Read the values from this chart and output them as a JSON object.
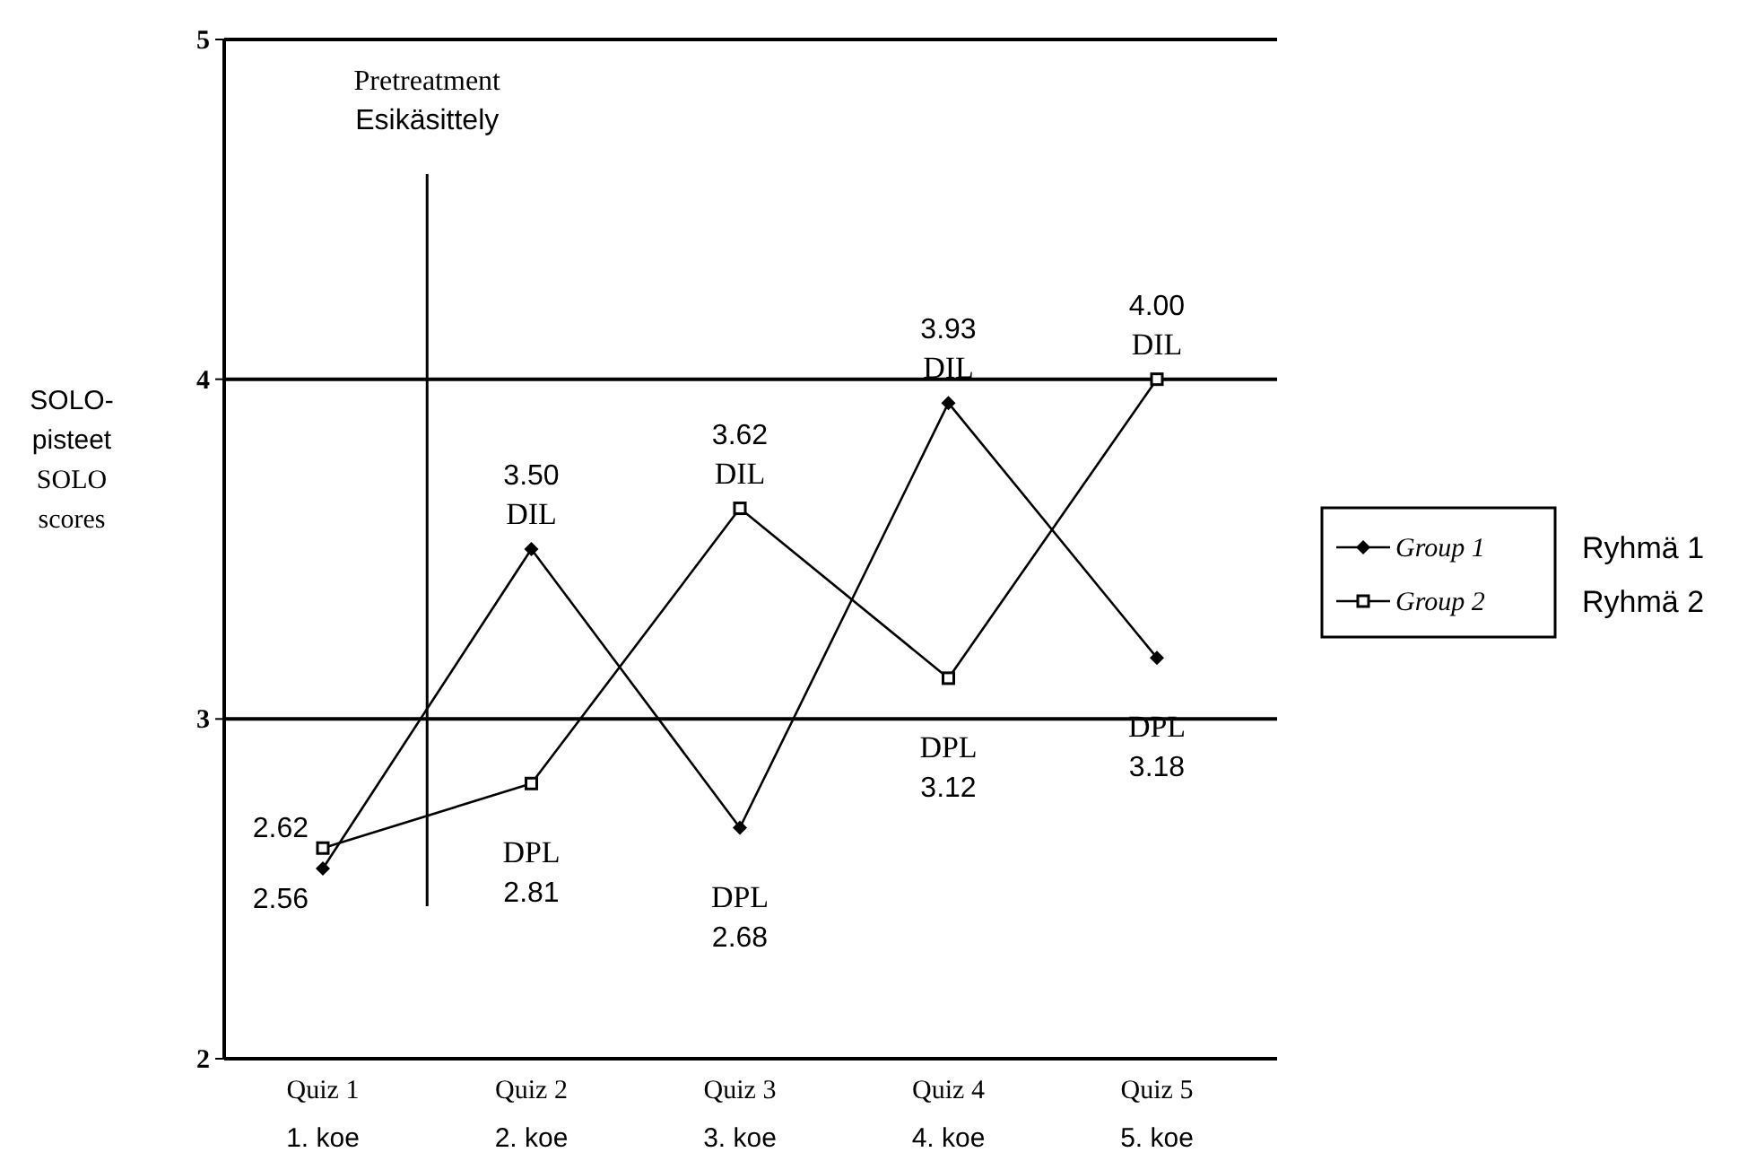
{
  "chart_data": {
    "type": "line",
    "categories": [
      "Quiz 1\n1. koe",
      "Quiz 2\n2. koe",
      "Quiz 3\n3. koe",
      "Quiz 4\n4. koe",
      "Quiz 5\n5. koe"
    ],
    "ylabel": "SOLO-\npisteet\nSOLO\nscores",
    "ylim": [
      2,
      5
    ],
    "yticks": [
      2,
      3,
      4,
      5
    ],
    "grid": "y",
    "legend": "right",
    "series": [
      {
        "name": "Group 1",
        "color": "#000000",
        "marker": "diamond",
        "values": [
          2.56,
          3.5,
          2.68,
          3.93,
          3.18
        ],
        "value_labels": [
          "2.56",
          "3.50",
          "2.68",
          "3.93",
          "3.18"
        ]
      },
      {
        "name": "Group 2",
        "color": "#000000",
        "marker": "square",
        "values": [
          2.62,
          2.81,
          3.62,
          3.12,
          4.0
        ],
        "value_labels": [
          "2.62",
          "2.81",
          "3.62",
          "3.12",
          "4.00"
        ]
      }
    ],
    "annotations": [
      "Pretreatment\nEsikäsittely",
      "Ryhmä 1",
      "Ryhmä 2",
      {
        "text": "DIL",
        "x": "Quiz 2\n2. koe",
        "y": 3.5
      },
      {
        "text": "DPL",
        "x": "Quiz 2\n2. koe",
        "y": 2.81
      },
      {
        "text": "DIL",
        "x": "Quiz 3\n3. koe",
        "y": 3.62
      },
      {
        "text": "DPL",
        "x": "Quiz 3\n3. koe",
        "y": 2.68
      },
      {
        "text": "DIL",
        "x": "Quiz 4\n4. koe",
        "y": 3.93
      },
      {
        "text": "DPL",
        "x": "Quiz 4\n4. koe",
        "y": 3.12
      },
      {
        "text": "DIL",
        "x": "Quiz 5\n5. koe",
        "y": 4.0
      },
      {
        "text": "DPL",
        "x": "Quiz 5\n5. koe",
        "y": 3.18
      }
    ]
  }
}
